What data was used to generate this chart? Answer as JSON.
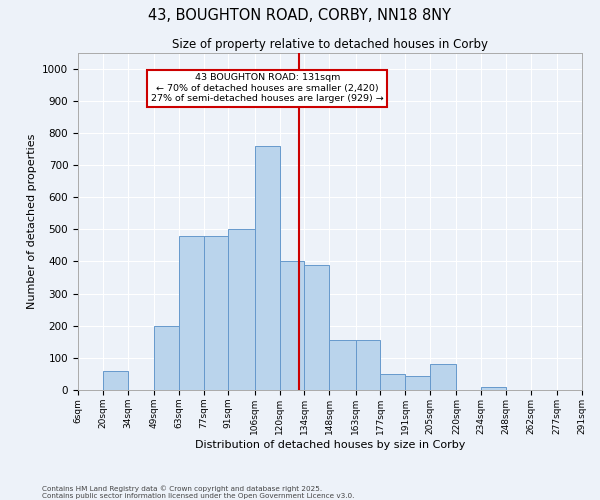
{
  "title_line1": "43, BOUGHTON ROAD, CORBY, NN18 8NY",
  "title_line2": "Size of property relative to detached houses in Corby",
  "xlabel": "Distribution of detached houses by size in Corby",
  "ylabel": "Number of detached properties",
  "footnote": "Contains HM Land Registry data © Crown copyright and database right 2025.\nContains public sector information licensed under the Open Government Licence v3.0.",
  "annotation_line1": "43 BOUGHTON ROAD: 131sqm",
  "annotation_line2": "← 70% of detached houses are smaller (2,420)",
  "annotation_line3": "27% of semi-detached houses are larger (929) →",
  "vline_x": 131,
  "bin_edges": [
    6,
    20,
    34,
    49,
    63,
    77,
    91,
    106,
    120,
    134,
    148,
    163,
    177,
    191,
    205,
    220,
    234,
    248,
    262,
    277,
    291
  ],
  "bar_heights": [
    0,
    58,
    0,
    200,
    480,
    480,
    500,
    760,
    400,
    390,
    155,
    155,
    50,
    45,
    80,
    0,
    10,
    0,
    0,
    0
  ],
  "bar_color": "#bad4ec",
  "bar_edge_color": "#6699cc",
  "vline_color": "#cc0000",
  "annotation_edge_color": "#cc0000",
  "bg_color": "#edf2f9",
  "grid_color": "#ffffff",
  "ylim": [
    0,
    1050
  ],
  "yticks": [
    0,
    100,
    200,
    300,
    400,
    500,
    600,
    700,
    800,
    900,
    1000
  ],
  "figsize": [
    6.0,
    5.0
  ],
  "dpi": 100
}
